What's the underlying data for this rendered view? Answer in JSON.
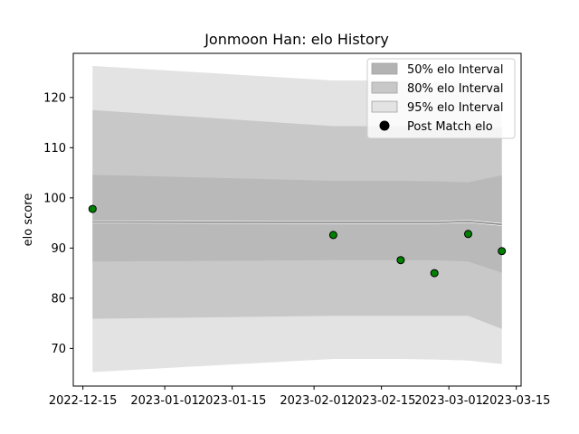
{
  "chart_data": {
    "type": "line",
    "title": "Jonmoon Han: elo History",
    "xlabel": "",
    "ylabel": "elo score",
    "x_ticks": [
      "2022-12-15",
      "2023-01-01",
      "2023-01-15",
      "2023-02-01",
      "2023-02-15",
      "2023-03-01",
      "2023-03-15"
    ],
    "y_ticks": [
      70,
      80,
      90,
      100,
      110,
      120
    ],
    "xlim": [
      "2022-12-13",
      "2023-03-16"
    ],
    "ylim": [
      62.5,
      128.8
    ],
    "grid": false,
    "legend_position": "top-right",
    "bands": {
      "dates": [
        "2022-12-17",
        "2023-02-05",
        "2023-02-19",
        "2023-02-26",
        "2023-03-05",
        "2023-03-12"
      ],
      "p95_upper": [
        126.3,
        123.4,
        123.4,
        123.1,
        123.2,
        123.0
      ],
      "p95_lower": [
        65.3,
        67.9,
        67.9,
        67.8,
        67.6,
        66.9
      ],
      "p80_upper": [
        117.5,
        114.3,
        114.3,
        114.1,
        114.2,
        114.0
      ],
      "p80_lower": [
        75.9,
        76.5,
        76.5,
        76.5,
        76.5,
        73.9
      ],
      "p50_upper": [
        104.6,
        103.4,
        103.4,
        103.3,
        103.1,
        104.5
      ],
      "p50_lower": [
        87.3,
        87.6,
        87.6,
        87.6,
        87.3,
        85.1
      ]
    },
    "mean_line": {
      "dates": [
        "2022-12-17",
        "2023-02-05",
        "2023-02-19",
        "2023-02-26",
        "2023-03-05",
        "2023-03-12"
      ],
      "values": [
        95.2,
        95.1,
        95.1,
        95.1,
        95.3,
        94.7
      ]
    },
    "series": [
      {
        "name": "Post Match elo",
        "x": [
          "2022-12-17",
          "2023-02-05",
          "2023-02-19",
          "2023-02-26",
          "2023-03-05",
          "2023-03-12"
        ],
        "values": [
          97.8,
          92.6,
          87.6,
          85.0,
          92.8,
          89.4
        ]
      }
    ],
    "legend": [
      {
        "label": "50% elo Interval",
        "kind": "patch",
        "color": "#b3b3b3"
      },
      {
        "label": "80% elo Interval",
        "kind": "patch",
        "color": "#c8c8c8"
      },
      {
        "label": "95% elo Interval",
        "kind": "patch",
        "color": "#e3e3e3"
      },
      {
        "label": "Post Match elo",
        "kind": "marker",
        "color": "#000000"
      }
    ],
    "colors": {
      "p95": "#e3e3e3",
      "p80": "#c8c8c8",
      "p50": "#b9b9b9",
      "mean": "#808080",
      "points": "#008000"
    }
  }
}
